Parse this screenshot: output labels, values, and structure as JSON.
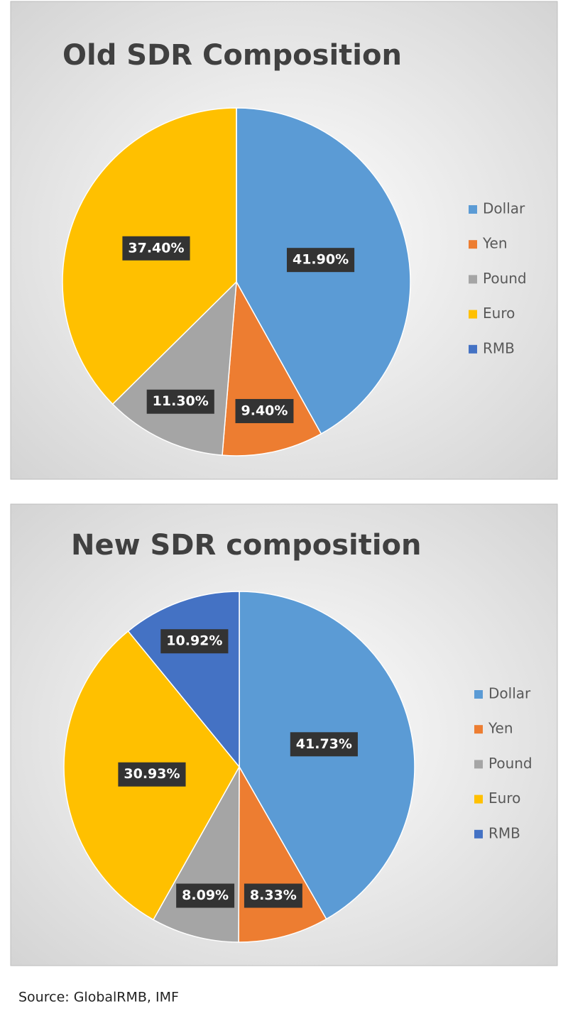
{
  "chart_data": [
    {
      "type": "pie",
      "title": "Old SDR Composition",
      "categories": [
        "Dollar",
        "Yen",
        "Pound",
        "Euro",
        "RMB"
      ],
      "values": [
        41.9,
        9.4,
        11.3,
        37.4,
        0
      ],
      "value_labels": [
        "41.90%",
        "9.40%",
        "11.30%",
        "37.40%",
        null
      ],
      "colors": [
        "#5b9bd5",
        "#ed7d31",
        "#a5a5a5",
        "#ffc000",
        "#4472c4"
      ],
      "legend": "right"
    },
    {
      "type": "pie",
      "title": "New SDR composition",
      "categories": [
        "Dollar",
        "Yen",
        "Pound",
        "Euro",
        "RMB"
      ],
      "values": [
        41.73,
        8.33,
        8.09,
        30.93,
        10.92
      ],
      "value_labels": [
        "41.73%",
        "8.33%",
        "8.09%",
        "30.93%",
        "10.92%"
      ],
      "colors": [
        "#5b9bd5",
        "#ed7d31",
        "#a5a5a5",
        "#ffc000",
        "#4472c4"
      ],
      "legend": "right"
    }
  ],
  "source": "Source: GlobalRMB, IMF"
}
